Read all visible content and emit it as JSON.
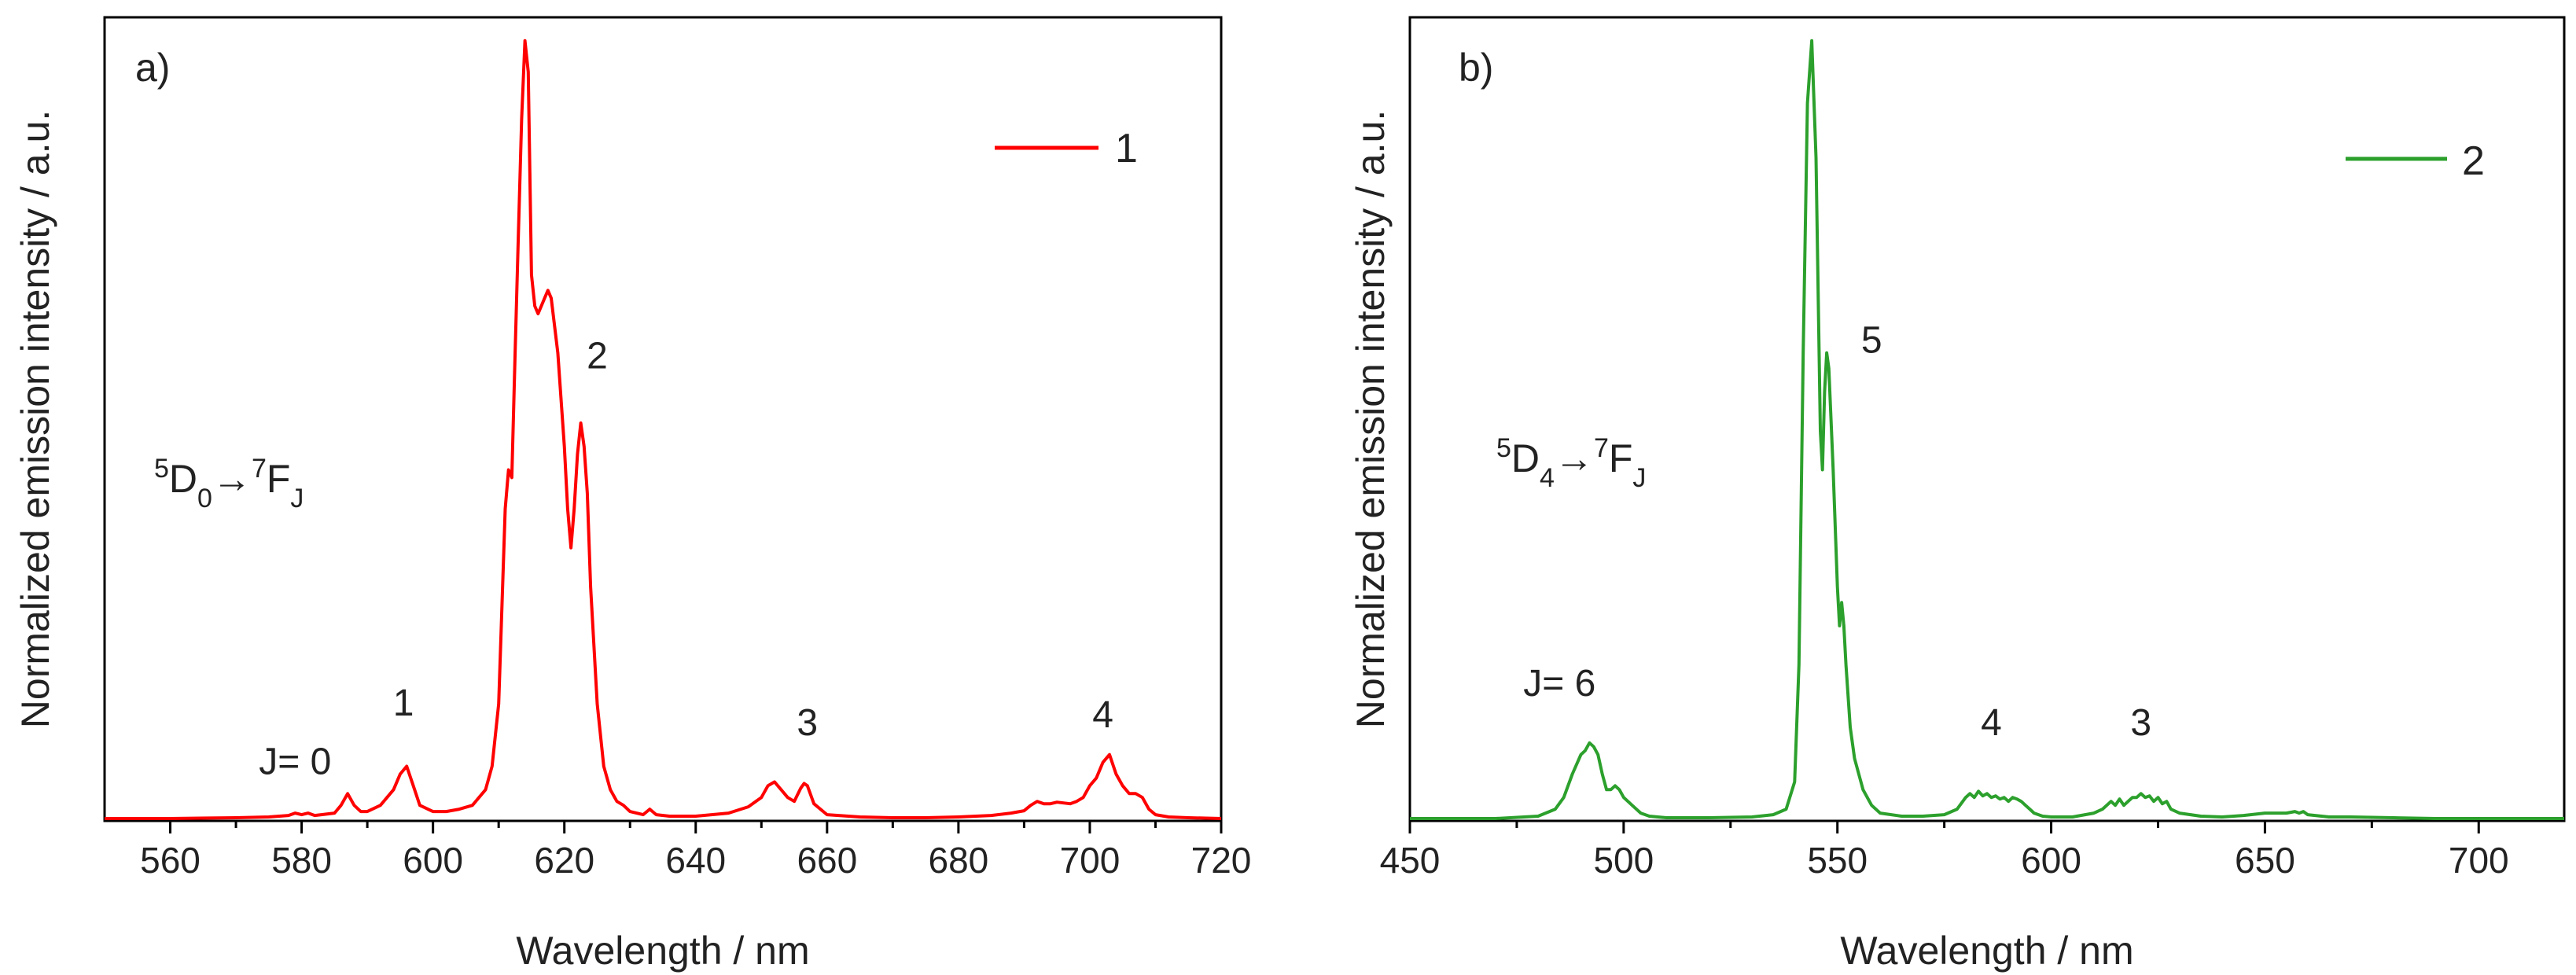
{
  "chart_data": [
    {
      "type": "line",
      "panel_label": "a)",
      "xlabel": "Wavelength / nm",
      "ylabel": "Normalized emission intensity / a.u.",
      "xlim": [
        550,
        720
      ],
      "ylim": [
        0,
        1.03
      ],
      "x_ticks": [
        560,
        580,
        600,
        620,
        640,
        660,
        680,
        700,
        720
      ],
      "color": "#ff0000",
      "legend": "1",
      "legend_position": "top-right",
      "transition": {
        "sup1": "5",
        "base1": "D",
        "sub1": "0",
        "arrow": "→",
        "sup2": "7",
        "base2": "F",
        "sub2": "J"
      },
      "annotations": [
        {
          "text": "J= 0",
          "x": 579,
          "y": 0.06
        },
        {
          "text": "1",
          "x": 595.5,
          "y": 0.135
        },
        {
          "text": "2",
          "x": 625,
          "y": 0.58
        },
        {
          "text": "3",
          "x": 657,
          "y": 0.11
        },
        {
          "text": "4",
          "x": 702,
          "y": 0.12
        }
      ],
      "series": [
        {
          "name": "1",
          "x": [
            550,
            560,
            570,
            575,
            578,
            579,
            580,
            581,
            582,
            585,
            586,
            587,
            588,
            589,
            590,
            592,
            593,
            594,
            595,
            596,
            597,
            598,
            600,
            602,
            604,
            606,
            608,
            609,
            610,
            611,
            611.5,
            612,
            612.5,
            613,
            613.5,
            614,
            614.5,
            615,
            615.5,
            616,
            617,
            617.5,
            618,
            619,
            620,
            620.5,
            621,
            621.5,
            622,
            622.5,
            623,
            623.5,
            624,
            625,
            626,
            627,
            628,
            629,
            630,
            632,
            633,
            634,
            636,
            640,
            645,
            648,
            650,
            651,
            652,
            653,
            654,
            655,
            656,
            656.5,
            657,
            658,
            660,
            665,
            670,
            675,
            680,
            685,
            688,
            690,
            691,
            692,
            693,
            694,
            695,
            696,
            697,
            698,
            699,
            700,
            701,
            702,
            703,
            704,
            705,
            706,
            707,
            708,
            709,
            710,
            712,
            715,
            720
          ],
          "y": [
            0.003,
            0.003,
            0.004,
            0.005,
            0.007,
            0.01,
            0.008,
            0.01,
            0.007,
            0.01,
            0.02,
            0.035,
            0.02,
            0.012,
            0.012,
            0.02,
            0.03,
            0.04,
            0.06,
            0.07,
            0.045,
            0.02,
            0.012,
            0.012,
            0.015,
            0.02,
            0.04,
            0.07,
            0.15,
            0.4,
            0.45,
            0.44,
            0.6,
            0.75,
            0.9,
            1.0,
            0.96,
            0.7,
            0.66,
            0.65,
            0.67,
            0.68,
            0.67,
            0.6,
            0.48,
            0.4,
            0.35,
            0.4,
            0.47,
            0.51,
            0.48,
            0.42,
            0.3,
            0.15,
            0.07,
            0.04,
            0.025,
            0.02,
            0.012,
            0.008,
            0.015,
            0.008,
            0.006,
            0.006,
            0.01,
            0.018,
            0.03,
            0.045,
            0.05,
            0.04,
            0.03,
            0.025,
            0.042,
            0.048,
            0.045,
            0.022,
            0.008,
            0.005,
            0.004,
            0.004,
            0.005,
            0.007,
            0.01,
            0.013,
            0.02,
            0.025,
            0.022,
            0.022,
            0.024,
            0.023,
            0.022,
            0.025,
            0.03,
            0.045,
            0.055,
            0.075,
            0.085,
            0.06,
            0.045,
            0.035,
            0.035,
            0.03,
            0.015,
            0.008,
            0.005,
            0.004,
            0.003
          ]
        }
      ]
    },
    {
      "type": "line",
      "panel_label": "b)",
      "xlabel": "Wavelength / nm",
      "ylabel": "Normalized emission intensity / a.u.",
      "xlim": [
        450,
        720
      ],
      "ylim": [
        0,
        1.03
      ],
      "x_ticks": [
        450,
        500,
        550,
        600,
        650,
        700
      ],
      "color": "#2ca02c",
      "legend": "2",
      "legend_position": "top-right",
      "transition": {
        "sup1": "5",
        "base1": "D",
        "sub1": "4",
        "arrow": "→",
        "sup2": "7",
        "base2": "F",
        "sub2": "J"
      },
      "annotations": [
        {
          "text": "J= 6",
          "x": 485,
          "y": 0.16
        },
        {
          "text": "5",
          "x": 558,
          "y": 0.6
        },
        {
          "text": "4",
          "x": 586,
          "y": 0.11
        },
        {
          "text": "3",
          "x": 621,
          "y": 0.11
        }
      ],
      "series": [
        {
          "name": "2",
          "x": [
            450,
            470,
            480,
            484,
            486,
            488,
            490,
            491,
            492,
            493,
            494,
            495,
            496,
            497,
            498,
            499,
            500,
            501,
            502,
            504,
            506,
            510,
            520,
            530,
            535,
            538,
            540,
            541,
            542,
            543,
            544,
            545,
            546,
            546.5,
            547,
            547.5,
            548,
            549,
            550,
            550.5,
            551,
            551.5,
            552,
            553,
            554,
            555,
            556,
            558,
            560,
            565,
            570,
            575,
            578,
            580,
            581,
            582,
            583,
            584,
            585,
            586,
            587,
            588,
            589,
            590,
            591,
            592,
            593,
            594,
            595,
            596,
            598,
            600,
            605,
            610,
            612,
            614,
            615,
            616,
            617,
            618,
            619,
            620,
            621,
            622,
            623,
            624,
            625,
            626,
            627,
            628,
            630,
            635,
            640,
            645,
            650,
            655,
            657,
            658,
            659,
            660,
            665,
            670,
            680,
            690,
            700,
            710,
            720
          ],
          "y": [
            0.003,
            0.003,
            0.006,
            0.015,
            0.03,
            0.06,
            0.085,
            0.09,
            0.1,
            0.095,
            0.085,
            0.06,
            0.04,
            0.04,
            0.045,
            0.04,
            0.03,
            0.025,
            0.02,
            0.01,
            0.006,
            0.004,
            0.004,
            0.005,
            0.008,
            0.015,
            0.05,
            0.2,
            0.6,
            0.92,
            1.0,
            0.85,
            0.5,
            0.45,
            0.55,
            0.6,
            0.58,
            0.45,
            0.3,
            0.25,
            0.28,
            0.25,
            0.2,
            0.12,
            0.08,
            0.06,
            0.04,
            0.02,
            0.01,
            0.006,
            0.006,
            0.008,
            0.015,
            0.03,
            0.035,
            0.03,
            0.038,
            0.032,
            0.035,
            0.03,
            0.032,
            0.028,
            0.03,
            0.025,
            0.03,
            0.028,
            0.025,
            0.02,
            0.015,
            0.01,
            0.006,
            0.005,
            0.005,
            0.01,
            0.015,
            0.025,
            0.02,
            0.028,
            0.02,
            0.025,
            0.03,
            0.03,
            0.035,
            0.03,
            0.032,
            0.025,
            0.03,
            0.022,
            0.025,
            0.015,
            0.01,
            0.006,
            0.005,
            0.007,
            0.01,
            0.01,
            0.012,
            0.01,
            0.012,
            0.008,
            0.005,
            0.005,
            0.004,
            0.003,
            0.003,
            0.003,
            0.003
          ]
        }
      ]
    }
  ]
}
